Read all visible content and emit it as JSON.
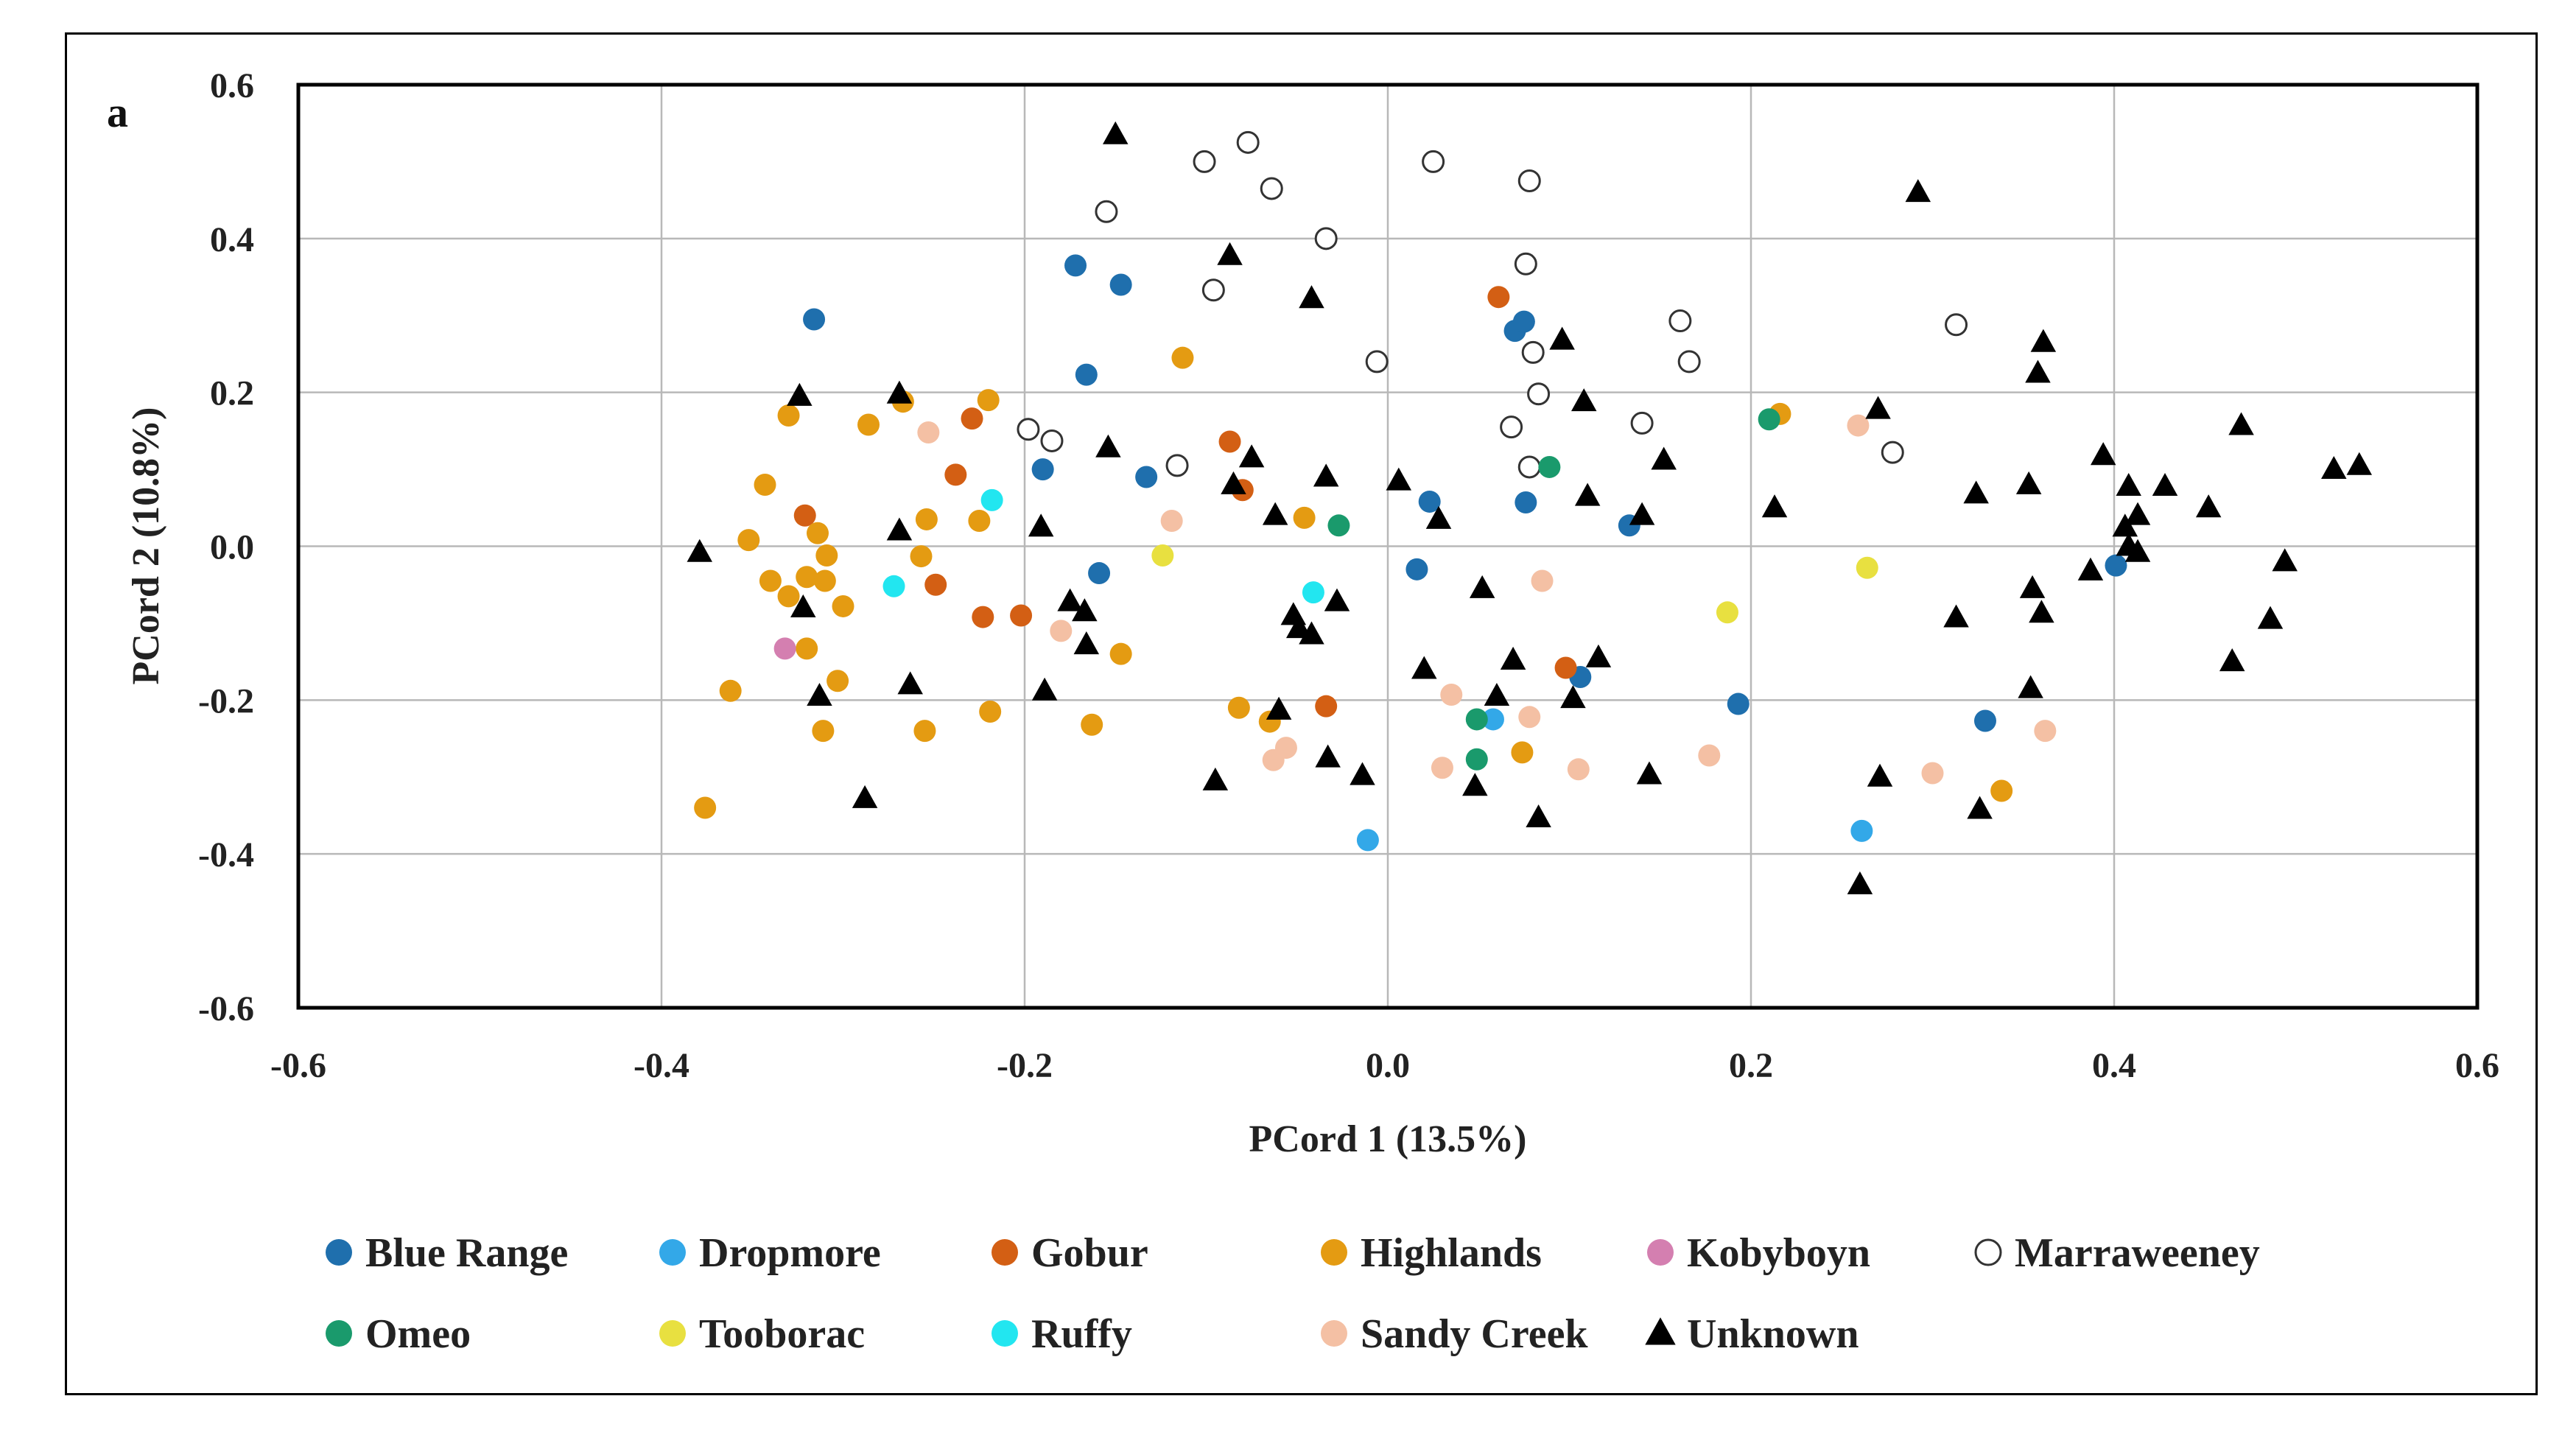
{
  "chart_data": {
    "type": "scatter",
    "panel_label": "a",
    "xlabel": "PCord 1 (13.5%)",
    "ylabel": "PCord 2 (10.8%)",
    "xlim": [
      -0.6,
      0.6
    ],
    "ylim": [
      -0.6,
      0.6
    ],
    "xticks": [
      -0.6,
      -0.4,
      -0.2,
      0.0,
      0.2,
      0.4,
      0.6
    ],
    "yticks": [
      -0.6,
      -0.4,
      -0.2,
      0.0,
      0.2,
      0.4,
      0.6
    ],
    "xtick_labels": [
      "-0.6",
      "-0.4",
      "-0.2",
      "0.0",
      "0.2",
      "0.4",
      "0.6"
    ],
    "ytick_labels": [
      "-0.6",
      "-0.4",
      "-0.2",
      "0.0",
      "0.2",
      "0.4",
      "0.6"
    ],
    "grid": true,
    "legend_position": "bottom",
    "series": [
      {
        "name": "Blue Range",
        "marker": "circle",
        "color": "#1f6fad",
        "points": [
          [
            -0.316,
            0.295
          ],
          [
            -0.172,
            0.365
          ],
          [
            -0.147,
            0.34
          ],
          [
            -0.166,
            0.223
          ],
          [
            -0.19,
            0.1
          ],
          [
            -0.133,
            0.09
          ],
          [
            -0.159,
            -0.035
          ],
          [
            0.07,
            0.28
          ],
          [
            0.075,
            0.292
          ],
          [
            0.023,
            0.058
          ],
          [
            0.076,
            0.057
          ],
          [
            0.133,
            0.027
          ],
          [
            0.016,
            -0.03
          ],
          [
            0.106,
            -0.17
          ],
          [
            0.193,
            -0.205
          ],
          [
            0.329,
            -0.227
          ],
          [
            0.401,
            -0.025
          ]
        ]
      },
      {
        "name": "Dropmore",
        "marker": "circle",
        "color": "#33a8e8",
        "points": [
          [
            0.058,
            -0.225
          ],
          [
            -0.011,
            -0.382
          ],
          [
            0.261,
            -0.37
          ]
        ]
      },
      {
        "name": "Gobur",
        "marker": "circle",
        "color": "#d35f14",
        "points": [
          [
            -0.321,
            0.04
          ],
          [
            -0.229,
            0.166
          ],
          [
            -0.238,
            0.093
          ],
          [
            -0.249,
            -0.05
          ],
          [
            -0.223,
            -0.092
          ],
          [
            -0.202,
            -0.09
          ],
          [
            -0.087,
            0.136
          ],
          [
            -0.08,
            0.073
          ],
          [
            -0.034,
            -0.208
          ],
          [
            0.061,
            0.324
          ],
          [
            0.098,
            -0.158
          ]
        ]
      },
      {
        "name": "Highlands",
        "marker": "circle",
        "color": "#e49b12",
        "points": [
          [
            -0.33,
            0.17
          ],
          [
            -0.286,
            0.158
          ],
          [
            -0.267,
            0.188
          ],
          [
            -0.22,
            0.19
          ],
          [
            -0.343,
            0.08
          ],
          [
            -0.352,
            0.008
          ],
          [
            -0.34,
            -0.045
          ],
          [
            -0.33,
            -0.065
          ],
          [
            -0.32,
            -0.04
          ],
          [
            -0.314,
            0.017
          ],
          [
            -0.309,
            -0.012
          ],
          [
            -0.31,
            -0.045
          ],
          [
            -0.3,
            -0.078
          ],
          [
            -0.32,
            -0.133
          ],
          [
            -0.303,
            -0.175
          ],
          [
            -0.362,
            -0.188
          ],
          [
            -0.376,
            -0.34
          ],
          [
            -0.311,
            -0.24
          ],
          [
            -0.255,
            -0.24
          ],
          [
            -0.219,
            -0.215
          ],
          [
            -0.254,
            0.035
          ],
          [
            -0.225,
            0.033
          ],
          [
            -0.257,
            -0.013
          ],
          [
            -0.163,
            -0.232
          ],
          [
            -0.147,
            -0.14
          ],
          [
            -0.113,
            0.245
          ],
          [
            -0.046,
            0.037
          ],
          [
            -0.082,
            -0.21
          ],
          [
            -0.065,
            -0.228
          ],
          [
            0.074,
            -0.268
          ],
          [
            0.216,
            0.172
          ],
          [
            0.338,
            -0.318
          ]
        ]
      },
      {
        "name": "Kobyboyn",
        "marker": "circle",
        "color": "#d47fb0",
        "points": [
          [
            -0.332,
            -0.133
          ]
        ]
      },
      {
        "name": "Marraweeney",
        "marker": "open-circle",
        "color": "#ffffff",
        "points": [
          [
            -0.101,
            0.5
          ],
          [
            -0.077,
            0.525
          ],
          [
            -0.064,
            0.465
          ],
          [
            -0.155,
            0.435
          ],
          [
            -0.096,
            0.333
          ],
          [
            -0.034,
            0.4
          ],
          [
            0.025,
            0.5
          ],
          [
            0.078,
            0.475
          ],
          [
            0.076,
            0.367
          ],
          [
            -0.006,
            0.24
          ],
          [
            0.08,
            0.252
          ],
          [
            0.083,
            0.198
          ],
          [
            0.068,
            0.155
          ],
          [
            0.078,
            0.103
          ],
          [
            0.161,
            0.293
          ],
          [
            0.166,
            0.24
          ],
          [
            0.14,
            0.16
          ],
          [
            -0.198,
            0.152
          ],
          [
            -0.185,
            0.137
          ],
          [
            -0.116,
            0.105
          ],
          [
            0.313,
            0.288
          ],
          [
            0.278,
            0.122
          ]
        ]
      },
      {
        "name": "Omeo",
        "marker": "circle",
        "color": "#1a9a6c",
        "points": [
          [
            0.089,
            0.103
          ],
          [
            -0.027,
            0.027
          ],
          [
            0.049,
            -0.225
          ],
          [
            0.049,
            -0.277
          ],
          [
            0.21,
            0.165
          ]
        ]
      },
      {
        "name": "Tooborac",
        "marker": "circle",
        "color": "#e8e040",
        "points": [
          [
            -0.124,
            -0.012
          ],
          [
            0.187,
            -0.086
          ],
          [
            0.264,
            -0.028
          ]
        ]
      },
      {
        "name": "Ruffy",
        "marker": "circle",
        "color": "#22e6f0",
        "points": [
          [
            -0.218,
            0.06
          ],
          [
            -0.272,
            -0.052
          ],
          [
            -0.041,
            -0.06
          ]
        ]
      },
      {
        "name": "Sandy Creek",
        "marker": "circle",
        "color": "#f4c0a4",
        "points": [
          [
            -0.253,
            0.148
          ],
          [
            -0.119,
            0.033
          ],
          [
            -0.18,
            -0.11
          ],
          [
            0.085,
            -0.045
          ],
          [
            0.035,
            -0.193
          ],
          [
            0.078,
            -0.222
          ],
          [
            -0.063,
            -0.278
          ],
          [
            -0.056,
            -0.262
          ],
          [
            0.03,
            -0.288
          ],
          [
            0.105,
            -0.29
          ],
          [
            0.177,
            -0.272
          ],
          [
            0.259,
            0.157
          ],
          [
            0.3,
            -0.295
          ],
          [
            0.362,
            -0.24
          ]
        ]
      },
      {
        "name": "Unknown",
        "marker": "triangle",
        "color": "#000000",
        "points": [
          [
            -0.379,
            -0.008
          ],
          [
            -0.324,
            0.195
          ],
          [
            -0.322,
            -0.08
          ],
          [
            -0.313,
            -0.195
          ],
          [
            -0.288,
            -0.328
          ],
          [
            -0.269,
            0.198
          ],
          [
            -0.269,
            0.02
          ],
          [
            -0.263,
            -0.18
          ],
          [
            -0.191,
            0.025
          ],
          [
            -0.189,
            -0.188
          ],
          [
            -0.175,
            -0.072
          ],
          [
            -0.167,
            -0.085
          ],
          [
            -0.166,
            -0.128
          ],
          [
            -0.154,
            0.128
          ],
          [
            -0.15,
            0.535
          ],
          [
            -0.087,
            0.378
          ],
          [
            -0.085,
            0.08
          ],
          [
            -0.075,
            0.115
          ],
          [
            -0.095,
            -0.305
          ],
          [
            -0.062,
            0.04
          ],
          [
            -0.06,
            -0.213
          ],
          [
            -0.052,
            -0.09
          ],
          [
            -0.049,
            -0.107
          ],
          [
            -0.042,
            0.322
          ],
          [
            -0.042,
            -0.115
          ],
          [
            -0.034,
            0.09
          ],
          [
            -0.033,
            -0.275
          ],
          [
            -0.028,
            -0.072
          ],
          [
            -0.014,
            -0.298
          ],
          [
            0.006,
            0.085
          ],
          [
            0.02,
            -0.16
          ],
          [
            0.028,
            0.035
          ],
          [
            0.052,
            -0.055
          ],
          [
            0.048,
            -0.312
          ],
          [
            0.06,
            -0.195
          ],
          [
            0.069,
            -0.148
          ],
          [
            0.083,
            -0.353
          ],
          [
            0.096,
            0.268
          ],
          [
            0.102,
            -0.198
          ],
          [
            0.108,
            0.188
          ],
          [
            0.11,
            0.065
          ],
          [
            0.116,
            -0.145
          ],
          [
            0.14,
            0.04
          ],
          [
            0.144,
            -0.297
          ],
          [
            0.152,
            0.112
          ],
          [
            0.213,
            0.05
          ],
          [
            0.26,
            -0.44
          ],
          [
            0.27,
            0.178
          ],
          [
            0.271,
            -0.3
          ],
          [
            0.292,
            0.46
          ],
          [
            0.313,
            -0.093
          ],
          [
            0.324,
            0.068
          ],
          [
            0.326,
            -0.342
          ],
          [
            0.353,
            0.08
          ],
          [
            0.355,
            -0.055
          ],
          [
            0.354,
            -0.185
          ],
          [
            0.358,
            0.225
          ],
          [
            0.36,
            -0.087
          ],
          [
            0.361,
            0.265
          ],
          [
            0.387,
            -0.032
          ],
          [
            0.394,
            0.118
          ],
          [
            0.406,
            0.025
          ],
          [
            0.408,
            0.078
          ],
          [
            0.408,
            0.0
          ],
          [
            0.413,
            -0.008
          ],
          [
            0.413,
            0.04
          ],
          [
            0.428,
            0.078
          ],
          [
            0.452,
            0.05
          ],
          [
            0.465,
            -0.15
          ],
          [
            0.47,
            0.157
          ],
          [
            0.486,
            -0.095
          ],
          [
            0.494,
            -0.02
          ],
          [
            0.521,
            0.1
          ],
          [
            0.535,
            0.105
          ]
        ]
      }
    ],
    "legend": [
      [
        "Blue Range",
        "Dropmore",
        "Gobur",
        "Highlands",
        "Kobyboyn",
        "Marraweeney"
      ],
      [
        "Omeo",
        "Tooborac",
        "Ruffy",
        "Sandy Creek",
        "Unknown"
      ]
    ]
  }
}
